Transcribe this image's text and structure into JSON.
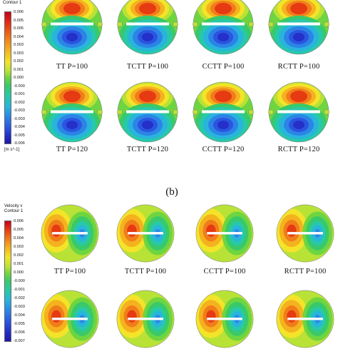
{
  "section_b_label": "(b)",
  "legend_a": {
    "title_line2": "Contour 1",
    "ticks": [
      "0.006",
      "0.005",
      "0.005",
      "0.004",
      "0.003",
      "0.003",
      "0.002",
      "0.001",
      "0.000",
      "-0.000",
      "-0.001",
      "-0.002",
      "-0.003",
      "-0.003",
      "-0.004",
      "-0.005",
      "-0.006"
    ],
    "unit": "[m s^-1]"
  },
  "legend_b": {
    "title_line1": "Velocity v",
    "title_line2": "Contour 1",
    "ticks": [
      "0.006",
      "0.005",
      "0.004",
      "0.003",
      "0.002",
      "0.001",
      "0.000",
      "-0.000",
      "-0.001",
      "-0.002",
      "-0.003",
      "-0.004",
      "-0.005",
      "-0.006",
      "-0.007"
    ]
  },
  "row_a1": [
    "TT P=100",
    "TCTT P=100",
    "CCTT P=100",
    "RCTT P=100"
  ],
  "row_a2": [
    "TT P=120",
    "TCTT P=120",
    "CCTT P=120",
    "RCTT P=120"
  ],
  "row_b1": [
    "TT P=100",
    "TCTT P=100",
    "CCTT P=100",
    "RCTT P=100"
  ],
  "colors": {
    "colormap": [
      "#c8001e",
      "#e63a12",
      "#f07d1a",
      "#f5b21f",
      "#f3e42a",
      "#b9e236",
      "#6ed540",
      "#39c96a",
      "#27c9a9",
      "#29b4dc",
      "#2c84e6",
      "#2a55e0",
      "#2430c8",
      "#1f16a8"
    ]
  }
}
